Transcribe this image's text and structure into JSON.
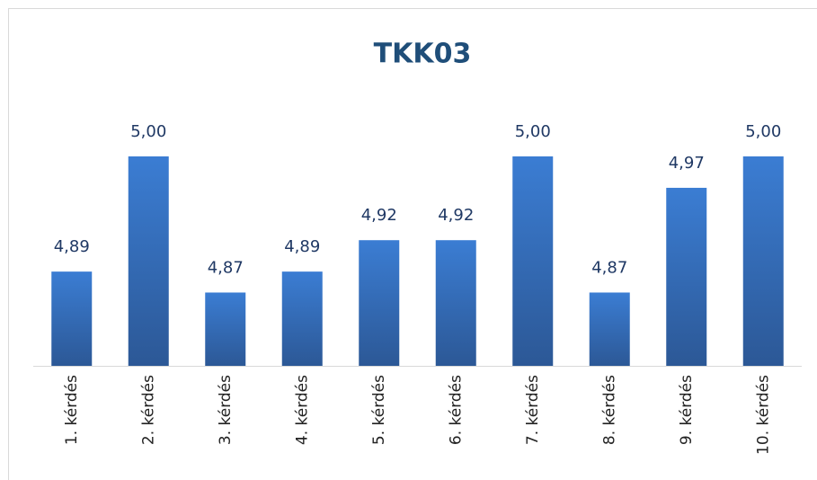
{
  "chart_data": {
    "type": "bar",
    "title": "TKK03",
    "categories": [
      "1. kérdés",
      "2. kérdés",
      "3. kérdés",
      "4. kérdés",
      "5. kérdés",
      "6. kérdés",
      "7. kérdés",
      "8. kérdés",
      "9. kérdés",
      "10. kérdés"
    ],
    "values": [
      4.89,
      5.0,
      4.87,
      4.89,
      4.92,
      4.92,
      5.0,
      4.87,
      4.97,
      5.0
    ],
    "value_labels": [
      "4,89",
      "5,00",
      "4,87",
      "4,89",
      "4,92",
      "4,92",
      "5,00",
      "4,87",
      "4,97",
      "5,00"
    ],
    "color": "#3b7dd3",
    "ylim": [
      4.8,
      5.0
    ]
  }
}
